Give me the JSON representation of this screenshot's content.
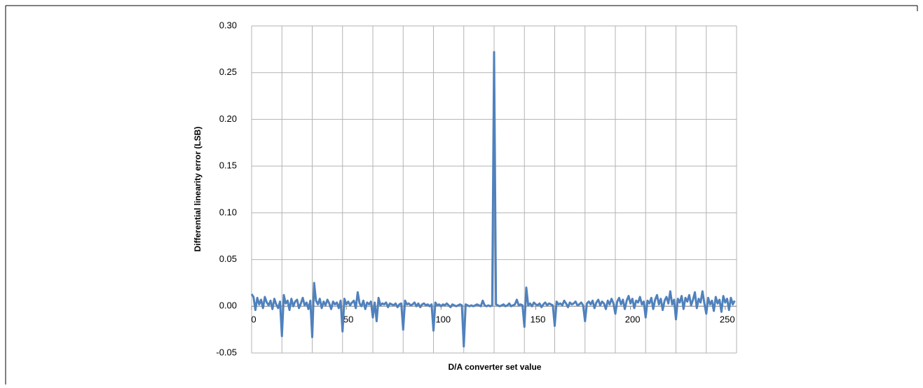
{
  "chart_data": {
    "type": "line",
    "x_label": "D/A converter set value",
    "y_label": "Differential linearity error  (LSB)",
    "xlim": [
      0,
      256
    ],
    "xticks": [
      0,
      50,
      100,
      150,
      200,
      250
    ],
    "x_gridlines": [
      0,
      16,
      32,
      48,
      64,
      80,
      96,
      112,
      128,
      144,
      160,
      176,
      192,
      208,
      224,
      240,
      256
    ],
    "ylim": [
      -0.05,
      0.3
    ],
    "yticks": [
      {
        "value": -0.05,
        "label": "-0.05"
      },
      {
        "value": 0,
        "label": "0.00"
      },
      {
        "value": 0.05,
        "label": "0.05"
      },
      {
        "value": 0.1,
        "label": "0.10"
      },
      {
        "value": 0.15,
        "label": "0.15"
      },
      {
        "value": 0.2,
        "label": "0.20"
      },
      {
        "value": 0.25,
        "label": "0.25"
      },
      {
        "value": 0.3,
        "label": "0.30"
      }
    ],
    "grid": true,
    "x": [
      0,
      1,
      2,
      3,
      4,
      5,
      6,
      7,
      8,
      9,
      10,
      11,
      12,
      13,
      14,
      15,
      16,
      17,
      18,
      19,
      20,
      21,
      22,
      23,
      24,
      25,
      26,
      27,
      28,
      29,
      30,
      31,
      32,
      33,
      34,
      35,
      36,
      37,
      38,
      39,
      40,
      41,
      42,
      43,
      44,
      45,
      46,
      47,
      48,
      49,
      50,
      51,
      52,
      53,
      54,
      55,
      56,
      57,
      58,
      59,
      60,
      61,
      62,
      63,
      64,
      65,
      66,
      67,
      68,
      69,
      70,
      71,
      72,
      73,
      74,
      75,
      76,
      77,
      78,
      79,
      80,
      81,
      82,
      83,
      84,
      85,
      86,
      87,
      88,
      89,
      90,
      91,
      92,
      93,
      94,
      95,
      96,
      97,
      98,
      99,
      100,
      101,
      102,
      103,
      104,
      105,
      106,
      107,
      108,
      109,
      110,
      111,
      112,
      113,
      114,
      115,
      116,
      117,
      118,
      119,
      120,
      121,
      122,
      123,
      124,
      125,
      126,
      127,
      128,
      129,
      130,
      131,
      132,
      133,
      134,
      135,
      136,
      137,
      138,
      139,
      140,
      141,
      142,
      143,
      144,
      145,
      146,
      147,
      148,
      149,
      150,
      151,
      152,
      153,
      154,
      155,
      156,
      157,
      158,
      159,
      160,
      161,
      162,
      163,
      164,
      165,
      166,
      167,
      168,
      169,
      170,
      171,
      172,
      173,
      174,
      175,
      176,
      177,
      178,
      179,
      180,
      181,
      182,
      183,
      184,
      185,
      186,
      187,
      188,
      189,
      190,
      191,
      192,
      193,
      194,
      195,
      196,
      197,
      198,
      199,
      200,
      201,
      202,
      203,
      204,
      205,
      206,
      207,
      208,
      209,
      210,
      211,
      212,
      213,
      214,
      215,
      216,
      217,
      218,
      219,
      220,
      221,
      222,
      223,
      224,
      225,
      226,
      227,
      228,
      229,
      230,
      231,
      232,
      233,
      234,
      235,
      236,
      237,
      238,
      239,
      240,
      241,
      242,
      243,
      244,
      245,
      246,
      247,
      248,
      249,
      250,
      251,
      252,
      253,
      254,
      255
    ],
    "series": [
      {
        "color": "#4f81bd",
        "values": [
          0.013,
          0.01,
          -0.004,
          0.009,
          0.002,
          0.007,
          -0.002,
          0.01,
          0.004,
          0.001,
          0.006,
          -0.003,
          0.008,
          0.002,
          -0.002,
          0.005,
          -0.032,
          0.012,
          0.003,
          0.006,
          -0.004,
          0.008,
          0.0,
          0.005,
          0.007,
          -0.002,
          0.003,
          0.009,
          0.001,
          0.004,
          -0.003,
          0.006,
          -0.033,
          0.025,
          0.006,
          0.002,
          0.008,
          -0.002,
          0.005,
          0.001,
          0.007,
          0.003,
          -0.003,
          0.005,
          0.002,
          0.004,
          -0.002,
          0.006,
          -0.027,
          0.008,
          0.002,
          0.005,
          0.001,
          0.004,
          0.006,
          -0.002,
          0.015,
          0.003,
          0.0,
          0.006,
          -0.003,
          0.004,
          0.002,
          0.005,
          -0.012,
          0.004,
          -0.016,
          0.009,
          0.001,
          0.003,
          0.002,
          0.004,
          -0.001,
          0.003,
          0.002,
          0.001,
          0.003,
          -0.001,
          0.002,
          0.003,
          -0.025,
          0.006,
          0.002,
          0.003,
          0.001,
          0.002,
          0.004,
          0.0,
          0.003,
          -0.001,
          0.002,
          0.003,
          0.001,
          0.002,
          0.0,
          0.002,
          -0.026,
          0.004,
          0.001,
          0.002,
          0.0,
          0.002,
          0.001,
          0.003,
          0.001,
          -0.001,
          0.002,
          0.001,
          0.0,
          0.001,
          0.002,
          0.001,
          -0.043,
          0.002,
          0.001,
          0.0,
          0.001,
          0.0,
          0.001,
          0.002,
          0.001,
          0.0,
          0.006,
          0.001,
          0.0,
          0.001,
          0.0,
          0.001,
          0.272,
          0.002,
          0.001,
          0.0,
          0.001,
          0.002,
          0.0,
          0.001,
          0.003,
          0.0,
          0.001,
          0.002,
          0.007,
          0.001,
          0.002,
          0.001,
          -0.022,
          0.02,
          0.001,
          0.003,
          0.0,
          0.004,
          0.002,
          0.001,
          0.003,
          -0.001,
          0.002,
          0.004,
          0.001,
          0.003,
          0.002,
          0.001,
          -0.021,
          0.005,
          0.002,
          0.003,
          0.001,
          0.006,
          0.003,
          -0.001,
          0.004,
          0.002,
          0.003,
          0.005,
          0.001,
          0.002,
          0.004,
          0.001,
          -0.016,
          0.003,
          0.005,
          0.002,
          0.006,
          -0.002,
          0.004,
          0.007,
          0.001,
          0.005,
          0.003,
          -0.003,
          0.006,
          0.002,
          0.008,
          0.003,
          -0.008,
          0.005,
          0.009,
          0.002,
          0.007,
          -0.003,
          0.006,
          0.011,
          0.003,
          0.008,
          -0.002,
          0.006,
          0.004,
          0.01,
          0.002,
          0.005,
          -0.012,
          0.006,
          0.003,
          0.009,
          -0.003,
          0.007,
          0.012,
          0.002,
          0.008,
          -0.004,
          0.006,
          0.01,
          0.003,
          0.016,
          0.002,
          0.007,
          -0.014,
          0.008,
          0.004,
          0.011,
          -0.003,
          0.009,
          0.005,
          0.012,
          0.001,
          0.007,
          0.015,
          -0.002,
          0.008,
          0.004,
          0.016,
          0.003,
          -0.008,
          0.009,
          0.002,
          0.006,
          -0.005,
          0.01,
          0.003,
          0.007,
          -0.006,
          0.011,
          0.004,
          0.008,
          -0.004,
          0.009,
          0.002,
          0.006
        ]
      }
    ]
  }
}
